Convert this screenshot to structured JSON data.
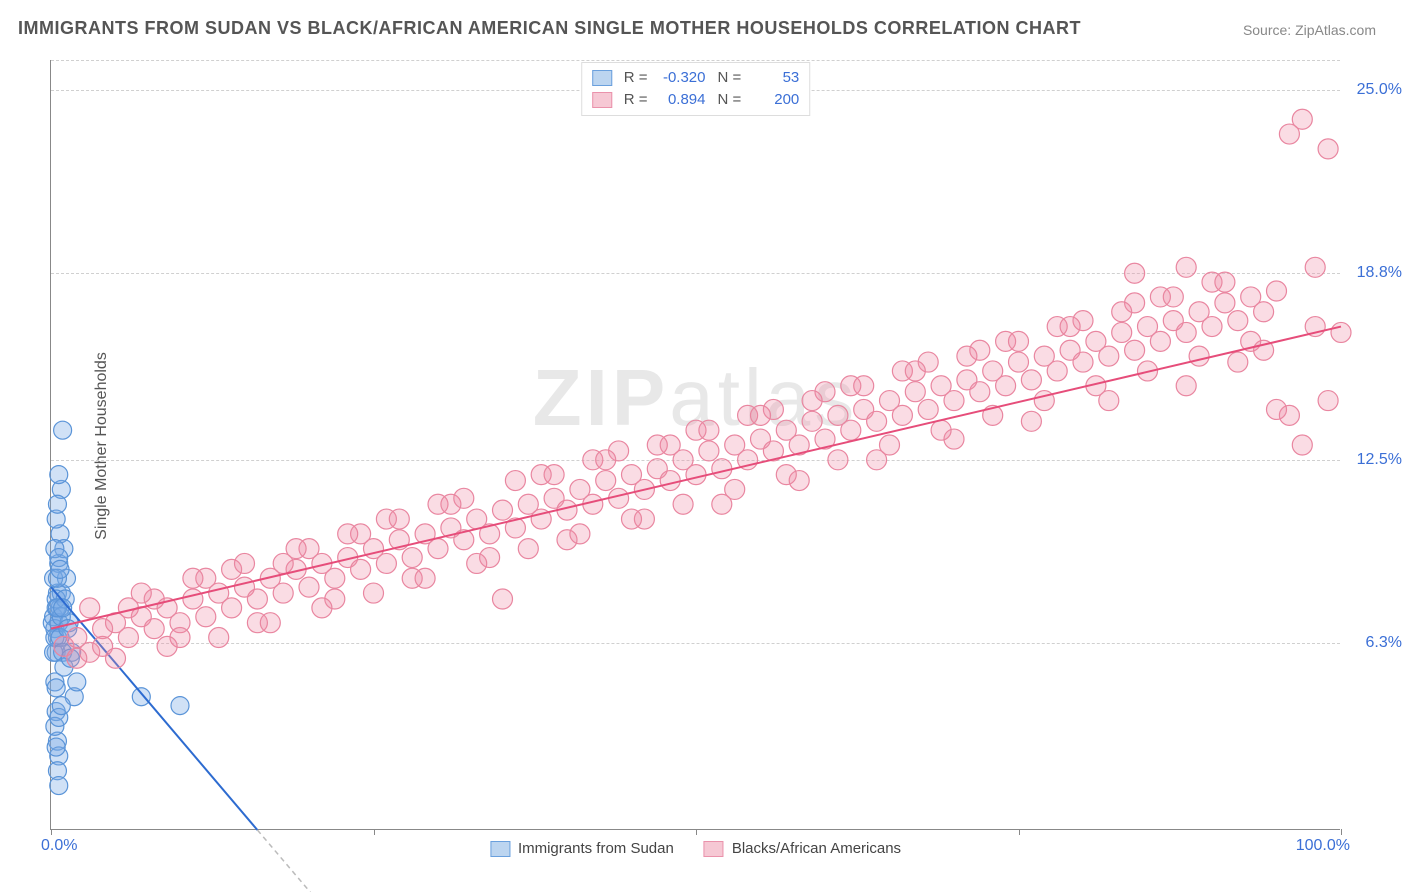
{
  "title": "IMMIGRANTS FROM SUDAN VS BLACK/AFRICAN AMERICAN SINGLE MOTHER HOUSEHOLDS CORRELATION CHART",
  "source_prefix": "Source: ",
  "source_name": "ZipAtlas.com",
  "watermark": "ZIPatlas",
  "ylabel": "Single Mother Households",
  "chart": {
    "type": "scatter",
    "background_color": "#ffffff",
    "grid_color": "#d0d0d0",
    "axis_color": "#888888",
    "xlim": [
      0,
      100
    ],
    "ylim": [
      0,
      26
    ],
    "x_tick_labels": {
      "left": "0.0%",
      "right": "100.0%"
    },
    "x_tick_marks": [
      0,
      25,
      50,
      75,
      100
    ],
    "y_ticks": [
      {
        "value": 6.3,
        "label": "6.3%"
      },
      {
        "value": 12.5,
        "label": "12.5%"
      },
      {
        "value": 18.8,
        "label": "18.8%"
      },
      {
        "value": 25.0,
        "label": "25.0%"
      }
    ],
    "series": [
      {
        "name": "Immigrants from Sudan",
        "color_fill": "rgba(120,170,230,0.35)",
        "color_stroke": "#5a94d8",
        "swatch_fill": "#bcd5f0",
        "swatch_border": "#6aa0dd",
        "marker_radius": 9,
        "r_value": "-0.320",
        "n_value": "53",
        "trend": {
          "x1": 0,
          "y1": 8.2,
          "x2": 16,
          "y2": 0,
          "color": "#2d6bd0",
          "width": 2,
          "dash_after_x": 16,
          "dash_x2": 22
        },
        "points": [
          [
            0.1,
            7.0
          ],
          [
            0.2,
            7.2
          ],
          [
            0.3,
            6.8
          ],
          [
            0.4,
            7.5
          ],
          [
            0.5,
            8.0
          ],
          [
            0.6,
            9.0
          ],
          [
            0.7,
            10.0
          ],
          [
            0.8,
            11.5
          ],
          [
            0.9,
            13.5
          ],
          [
            0.3,
            5.0
          ],
          [
            0.4,
            4.0
          ],
          [
            0.5,
            3.0
          ],
          [
            0.6,
            2.5
          ],
          [
            0.4,
            6.0
          ],
          [
            0.5,
            6.5
          ],
          [
            0.6,
            7.0
          ],
          [
            0.7,
            7.5
          ],
          [
            0.8,
            8.0
          ],
          [
            1.0,
            9.5
          ],
          [
            1.2,
            8.5
          ],
          [
            1.4,
            7.0
          ],
          [
            1.6,
            6.0
          ],
          [
            1.8,
            4.5
          ],
          [
            2.0,
            5.0
          ],
          [
            0.2,
            8.5
          ],
          [
            0.3,
            9.5
          ],
          [
            0.4,
            10.5
          ],
          [
            0.5,
            11.0
          ],
          [
            0.6,
            12.0
          ],
          [
            0.3,
            3.5
          ],
          [
            0.4,
            2.8
          ],
          [
            0.5,
            2.0
          ],
          [
            0.6,
            1.5
          ],
          [
            0.2,
            6.0
          ],
          [
            0.3,
            6.5
          ],
          [
            0.4,
            7.8
          ],
          [
            0.5,
            8.5
          ],
          [
            0.6,
            9.2
          ],
          [
            0.7,
            6.5
          ],
          [
            0.8,
            7.2
          ],
          [
            0.9,
            6.0
          ],
          [
            1.0,
            5.5
          ],
          [
            1.1,
            7.8
          ],
          [
            1.3,
            6.8
          ],
          [
            1.5,
            5.8
          ],
          [
            0.4,
            4.8
          ],
          [
            0.6,
            3.8
          ],
          [
            0.8,
            4.2
          ],
          [
            7.0,
            4.5
          ],
          [
            10.0,
            4.2
          ],
          [
            0.5,
            7.5
          ],
          [
            0.7,
            8.8
          ],
          [
            0.9,
            7.5
          ]
        ]
      },
      {
        "name": "Blacks/African Americans",
        "color_fill": "rgba(240,140,165,0.30)",
        "color_stroke": "#e986a0",
        "swatch_fill": "#f6c8d4",
        "swatch_border": "#ea92ab",
        "marker_radius": 10,
        "r_value": "0.894",
        "n_value": "200",
        "trend": {
          "x1": 0,
          "y1": 6.8,
          "x2": 100,
          "y2": 17.0,
          "color": "#e64d7a",
          "width": 2
        },
        "points": [
          [
            1,
            6.2
          ],
          [
            2,
            6.5
          ],
          [
            3,
            6.0
          ],
          [
            4,
            6.8
          ],
          [
            5,
            7.0
          ],
          [
            6,
            6.5
          ],
          [
            7,
            7.2
          ],
          [
            8,
            6.8
          ],
          [
            9,
            7.5
          ],
          [
            10,
            7.0
          ],
          [
            11,
            7.8
          ],
          [
            12,
            7.2
          ],
          [
            13,
            8.0
          ],
          [
            14,
            7.5
          ],
          [
            15,
            8.2
          ],
          [
            16,
            7.8
          ],
          [
            17,
            8.5
          ],
          [
            18,
            8.0
          ],
          [
            19,
            8.8
          ],
          [
            20,
            8.2
          ],
          [
            21,
            9.0
          ],
          [
            22,
            8.5
          ],
          [
            23,
            9.2
          ],
          [
            24,
            8.8
          ],
          [
            25,
            9.5
          ],
          [
            26,
            9.0
          ],
          [
            27,
            9.8
          ],
          [
            28,
            9.2
          ],
          [
            29,
            10.0
          ],
          [
            30,
            9.5
          ],
          [
            31,
            10.2
          ],
          [
            32,
            9.8
          ],
          [
            33,
            10.5
          ],
          [
            34,
            10.0
          ],
          [
            35,
            10.8
          ],
          [
            36,
            10.2
          ],
          [
            37,
            11.0
          ],
          [
            38,
            10.5
          ],
          [
            39,
            11.2
          ],
          [
            40,
            10.8
          ],
          [
            41,
            11.5
          ],
          [
            42,
            11.0
          ],
          [
            43,
            11.8
          ],
          [
            44,
            11.2
          ],
          [
            45,
            12.0
          ],
          [
            46,
            11.5
          ],
          [
            47,
            12.2
          ],
          [
            48,
            11.8
          ],
          [
            49,
            12.5
          ],
          [
            50,
            12.0
          ],
          [
            51,
            12.8
          ],
          [
            52,
            12.2
          ],
          [
            53,
            13.0
          ],
          [
            54,
            12.5
          ],
          [
            55,
            13.2
          ],
          [
            56,
            12.8
          ],
          [
            57,
            13.5
          ],
          [
            58,
            13.0
          ],
          [
            59,
            13.8
          ],
          [
            60,
            13.2
          ],
          [
            61,
            14.0
          ],
          [
            62,
            13.5
          ],
          [
            63,
            14.2
          ],
          [
            64,
            13.8
          ],
          [
            65,
            14.5
          ],
          [
            66,
            14.0
          ],
          [
            67,
            14.8
          ],
          [
            68,
            14.2
          ],
          [
            69,
            15.0
          ],
          [
            70,
            14.5
          ],
          [
            71,
            15.2
          ],
          [
            72,
            14.8
          ],
          [
            73,
            15.5
          ],
          [
            74,
            15.0
          ],
          [
            75,
            15.8
          ],
          [
            76,
            15.2
          ],
          [
            77,
            16.0
          ],
          [
            78,
            15.5
          ],
          [
            79,
            16.2
          ],
          [
            80,
            15.8
          ],
          [
            81,
            16.5
          ],
          [
            82,
            16.0
          ],
          [
            83,
            16.8
          ],
          [
            84,
            16.2
          ],
          [
            85,
            17.0
          ],
          [
            86,
            16.5
          ],
          [
            87,
            17.2
          ],
          [
            88,
            16.8
          ],
          [
            89,
            17.5
          ],
          [
            90,
            17.0
          ],
          [
            91,
            17.8
          ],
          [
            92,
            17.2
          ],
          [
            93,
            18.0
          ],
          [
            94,
            17.5
          ],
          [
            95,
            18.2
          ],
          [
            96,
            23.5
          ],
          [
            97,
            24.0
          ],
          [
            98,
            19.0
          ],
          [
            99,
            23.0
          ],
          [
            100,
            16.8
          ],
          [
            2,
            5.8
          ],
          [
            4,
            6.2
          ],
          [
            6,
            7.5
          ],
          [
            8,
            7.8
          ],
          [
            10,
            6.5
          ],
          [
            12,
            8.5
          ],
          [
            14,
            8.8
          ],
          [
            16,
            7.0
          ],
          [
            18,
            9.0
          ],
          [
            20,
            9.5
          ],
          [
            22,
            7.8
          ],
          [
            24,
            10.0
          ],
          [
            26,
            10.5
          ],
          [
            28,
            8.5
          ],
          [
            30,
            11.0
          ],
          [
            32,
            11.2
          ],
          [
            34,
            9.2
          ],
          [
            36,
            11.8
          ],
          [
            38,
            12.0
          ],
          [
            40,
            9.8
          ],
          [
            42,
            12.5
          ],
          [
            44,
            12.8
          ],
          [
            46,
            10.5
          ],
          [
            48,
            13.0
          ],
          [
            50,
            13.5
          ],
          [
            52,
            11.0
          ],
          [
            54,
            14.0
          ],
          [
            56,
            14.2
          ],
          [
            58,
            11.8
          ],
          [
            60,
            14.8
          ],
          [
            62,
            15.0
          ],
          [
            64,
            12.5
          ],
          [
            66,
            15.5
          ],
          [
            68,
            15.8
          ],
          [
            70,
            13.2
          ],
          [
            72,
            16.2
          ],
          [
            74,
            16.5
          ],
          [
            76,
            13.8
          ],
          [
            78,
            17.0
          ],
          [
            80,
            17.2
          ],
          [
            82,
            14.5
          ],
          [
            84,
            17.8
          ],
          [
            86,
            18.0
          ],
          [
            88,
            15.0
          ],
          [
            90,
            18.5
          ],
          [
            92,
            15.8
          ],
          [
            94,
            16.2
          ],
          [
            96,
            14.0
          ],
          [
            98,
            17.0
          ],
          [
            35,
            7.8
          ],
          [
            3,
            7.5
          ],
          [
            5,
            5.8
          ],
          [
            7,
            8.0
          ],
          [
            9,
            6.2
          ],
          [
            11,
            8.5
          ],
          [
            13,
            6.5
          ],
          [
            15,
            9.0
          ],
          [
            17,
            7.0
          ],
          [
            19,
            9.5
          ],
          [
            21,
            7.5
          ],
          [
            23,
            10.0
          ],
          [
            25,
            8.0
          ],
          [
            27,
            10.5
          ],
          [
            29,
            8.5
          ],
          [
            31,
            11.0
          ],
          [
            33,
            9.0
          ],
          [
            37,
            9.5
          ],
          [
            39,
            12.0
          ],
          [
            41,
            10.0
          ],
          [
            43,
            12.5
          ],
          [
            45,
            10.5
          ],
          [
            47,
            13.0
          ],
          [
            49,
            11.0
          ],
          [
            51,
            13.5
          ],
          [
            53,
            11.5
          ],
          [
            55,
            14.0
          ],
          [
            57,
            12.0
          ],
          [
            59,
            14.5
          ],
          [
            61,
            12.5
          ],
          [
            63,
            15.0
          ],
          [
            65,
            13.0
          ],
          [
            67,
            15.5
          ],
          [
            69,
            13.5
          ],
          [
            71,
            16.0
          ],
          [
            73,
            14.0
          ],
          [
            75,
            16.5
          ],
          [
            77,
            14.5
          ],
          [
            79,
            17.0
          ],
          [
            81,
            15.0
          ],
          [
            83,
            17.5
          ],
          [
            85,
            15.5
          ],
          [
            87,
            18.0
          ],
          [
            89,
            16.0
          ],
          [
            91,
            18.5
          ],
          [
            93,
            16.5
          ],
          [
            95,
            14.2
          ],
          [
            97,
            13.0
          ],
          [
            99,
            14.5
          ],
          [
            84,
            18.8
          ],
          [
            88,
            19.0
          ]
        ]
      }
    ]
  },
  "legend_top": {
    "r_label": "R =",
    "n_label": "N ="
  },
  "legend_bottom_items": [
    "Immigrants from Sudan",
    "Blacks/African Americans"
  ]
}
